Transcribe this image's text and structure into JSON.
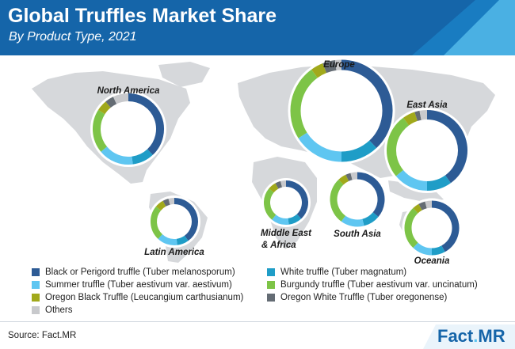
{
  "title": "Global Truffles Market Share",
  "subtitle": "By Product Type, 2021",
  "source": "Source: Fact.MR",
  "logo": {
    "part1": "Fact",
    "part2": ".",
    "part3": "MR"
  },
  "colors": {
    "header": "#1565a9",
    "map": "#d6d8db",
    "accent_light": "#5fc6f1"
  },
  "chart_data": {
    "type": "pie",
    "title": "Global Truffles Market Share",
    "subtitle": "By Product Type, 2021",
    "categories": [
      "Black or Perigord truffle (Tuber melanosporum)",
      "White truffle (Tuber magnatum)",
      "Summer truffle (Tuber aestivum var. aestivum)",
      "Burgundy truffle (Tuber aestivum var. uncinatum)",
      "Oregon Black Truffle (Leucangium carthusianum)",
      "Oregon White Truffle (Tuber oregonense)",
      "Others"
    ],
    "colors": [
      "#2d5b95",
      "#1f9dc7",
      "#5fc6f1",
      "#7dc447",
      "#a1a91b",
      "#646c74",
      "#c8c9cc"
    ],
    "legend_position": "bottom",
    "regions": [
      {
        "name": "North America",
        "values": [
          38,
          10,
          16,
          20,
          5,
          4,
          7
        ]
      },
      {
        "name": "Europe",
        "values": [
          38,
          12,
          16,
          24,
          4,
          4,
          2
        ]
      },
      {
        "name": "East Asia",
        "values": [
          40,
          10,
          14,
          26,
          5,
          2,
          3
        ]
      },
      {
        "name": "Latin America",
        "values": [
          40,
          8,
          14,
          24,
          6,
          4,
          4
        ]
      },
      {
        "name": "Middle East & Africa",
        "values": [
          38,
          10,
          13,
          25,
          6,
          4,
          4
        ]
      },
      {
        "name": "South Asia",
        "values": [
          36,
          10,
          14,
          28,
          5,
          3,
          4
        ]
      },
      {
        "name": "Oceania",
        "values": [
          42,
          8,
          12,
          26,
          4,
          4,
          4
        ]
      }
    ]
  }
}
